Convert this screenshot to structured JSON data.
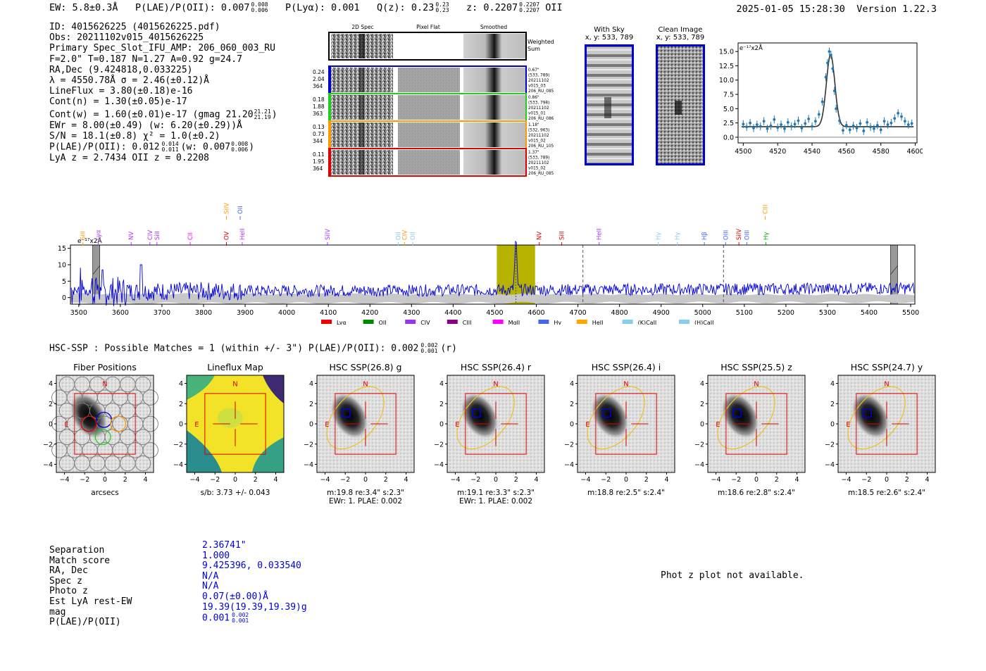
{
  "header": {
    "ew": "EW: 5.8±0.3Å",
    "plae_label": "P(LAE)/P(OII): 0.007",
    "plae_sup": "0.008",
    "plae_sub": "0.006",
    "plya": "P(Lyα): 0.001",
    "qz_label": "Q(z): 0.23",
    "qz_sup": "0.23",
    "qz_sub": "0.23",
    "z_label": "z: 0.2207",
    "z_sup": "0.2207",
    "z_sub": "0.2207",
    "z_line": "OII",
    "datetime": "2025-01-05 15:28:30",
    "version": "Version 1.22.3"
  },
  "info": {
    "id": "ID: 4015626225 (4015626225.pdf)",
    "obs": "Obs: 20211102v015_4015626225",
    "primary": "Primary Spec_Slot_IFU_AMP: 206_060_003_RU",
    "fiber": "F=2.0\"  T=0.187  N=1.27  A=0.92  g=24.7",
    "radec": "RA,Dec (9.424818,0.033225)",
    "lambda": "λ = 4550.78Å  σ = 2.46(±0.12)Å",
    "lineflux": "LineFlux = 3.80(±0.18)e-16",
    "contn": "Cont(n) = 1.30(±0.05)e-17",
    "contw": "Cont(w) = 1.60(±0.01)e-17 (gmag 21.20",
    "contw_sup": "21.21",
    "contw_sub": "21.19",
    "contw_close": ")",
    "ewr": "EWr = 8.00(±0.49) (w: 6.20(±0.29))Å",
    "sn": "S/N = 18.1(±0.8)  χ² = 1.0(±0.2)",
    "plae": "P(LAE)/P(OII): 0.012",
    "plae_sup": "0.014",
    "plae_sub": "0.011",
    "plae_w": "(w: 0.007",
    "plae_w_sup": "0.008",
    "plae_w_sub": "0.006",
    "plae_w_close": ")",
    "lyaz": "LyA z = 2.7434  OII z = 0.2208"
  },
  "stamps": {
    "col_labels": [
      "2D Spec",
      "Pixel Flat",
      "Smoothed"
    ],
    "weighted_sum": [
      "Weighted",
      "Sum"
    ],
    "rows": [
      {
        "left": [
          "0.24",
          "2.04",
          "364"
        ],
        "right": [
          "0.67\"",
          "(533, 789)",
          "20211102",
          "v015_03",
          "206_RU_085"
        ],
        "color": "#0000cc"
      },
      {
        "left": [
          "0.18",
          "1.88",
          "363"
        ],
        "right": [
          "0.86\"",
          "(533, 798)",
          "20211102",
          "v015_01",
          "206_RU_086"
        ],
        "color": "#22cc22"
      },
      {
        "left": [
          "0.13",
          "0.73",
          "344"
        ],
        "right": [
          "1.18\"",
          "(532, 963)",
          "20211102",
          "v015_02",
          "206_RU_105"
        ],
        "color": "#ff9900"
      },
      {
        "left": [
          "0.11",
          "1.95",
          "364"
        ],
        "right": [
          "1.37\"",
          "(533, 789)",
          "20211102",
          "v015_02",
          "206_RU_085"
        ],
        "color": "#dd0000"
      }
    ]
  },
  "sky": {
    "with_sky": "With Sky",
    "with_sky_xy": "x, y: 533, 789",
    "clean": "Clean Image",
    "clean_xy": "x, y: 533, 789"
  },
  "fit_chart": {
    "type": "scatter",
    "unit_label": "e⁻¹⁷x2Å",
    "xlim": [
      4497,
      4601
    ],
    "ylim": [
      -1,
      16.5
    ],
    "xticks": [
      4500,
      4520,
      4540,
      4560,
      4580,
      4600
    ],
    "yticks": [
      0.0,
      2.5,
      5.0,
      7.5,
      10.0,
      12.5,
      15.0
    ],
    "points_x": [
      4500,
      4502,
      4504,
      4506,
      4508,
      4510,
      4512,
      4514,
      4516,
      4518,
      4520,
      4522,
      4524,
      4526,
      4528,
      4530,
      4532,
      4534,
      4536,
      4538,
      4540,
      4542,
      4544,
      4546,
      4548,
      4549,
      4550,
      4551,
      4552,
      4553,
      4554,
      4556,
      4558,
      4560,
      4562,
      4564,
      4566,
      4568,
      4570,
      4572,
      4574,
      4576,
      4578,
      4580,
      4582,
      4584,
      4586,
      4588,
      4590,
      4592,
      4594,
      4596,
      4598
    ],
    "points_y": [
      2.3,
      1.8,
      2.5,
      1.6,
      2.2,
      1.9,
      2.8,
      1.5,
      2.0,
      3.1,
      1.7,
      2.2,
      1.5,
      2.6,
      1.9,
      2.3,
      2.9,
      1.6,
      2.4,
      3.2,
      1.9,
      2.8,
      4.0,
      6.2,
      10.5,
      13.0,
      15.0,
      14.4,
      12.0,
      8.1,
      5.0,
      2.9,
      1.2,
      2.1,
      1.3,
      2.0,
      1.6,
      2.4,
      1.1,
      2.6,
      1.8,
      1.5,
      2.1,
      1.3,
      2.8,
      2.2,
      2.5,
      3.3,
      4.2,
      3.6,
      2.8,
      2.2,
      2.4
    ],
    "error": 0.7,
    "model": {
      "continuum": 1.85,
      "center": 4550.78,
      "sigma": 2.46,
      "amplitude": 12.6
    }
  },
  "spectrum_chart": {
    "type": "line",
    "unit_label": "e⁻¹⁷x2Å",
    "xlim": [
      3480,
      5510
    ],
    "ylim": [
      -2,
      16
    ],
    "xticks": [
      3500,
      3600,
      3700,
      3800,
      3900,
      4000,
      4100,
      4200,
      4300,
      4400,
      4500,
      4600,
      4700,
      4800,
      4900,
      5000,
      5100,
      5200,
      5300,
      5400,
      5500
    ],
    "yticks": [
      0,
      5,
      10,
      15
    ],
    "highlight_band": [
      4505,
      4597
    ],
    "peak_center": 4550.78,
    "peak_height": 14.5,
    "grey_bands": [
      3542,
      5460
    ],
    "dashed_lines": [
      4712,
      5050
    ],
    "line_labels": [
      {
        "text": "SiII",
        "x": 3510,
        "color": "#ff9900",
        "row": 1
      },
      {
        "text": "Lyα",
        "x": 3547,
        "color": "#aa33ff",
        "row": 1
      },
      {
        "text": "NV",
        "x": 3626,
        "color": "#aa33ff",
        "row": 1
      },
      {
        "text": "CIV",
        "x": 3671,
        "color": "#aa33ff",
        "row": 1
      },
      {
        "text": "SiII",
        "x": 3688,
        "color": "#aa33ff",
        "row": 1
      },
      {
        "text": "CII",
        "x": 3768,
        "color": "#ff00ff",
        "row": 1
      },
      {
        "text": "SiIV",
        "x": 3855,
        "color": "#ff9900",
        "row": 0
      },
      {
        "text": "OII",
        "x": 3888,
        "color": "#4466ff",
        "row": 0
      },
      {
        "text": "OV",
        "x": 3855,
        "color": "#dd0000",
        "row": 1
      },
      {
        "text": "HeII",
        "x": 3893,
        "color": "#aa33ff",
        "row": 1
      },
      {
        "text": "SiIV",
        "x": 4098,
        "color": "#aa33ff",
        "row": 1
      },
      {
        "text": "OII",
        "x": 4268,
        "color": "#88ccee",
        "row": 1
      },
      {
        "text": "CIV",
        "x": 4283,
        "color": "#ff9900",
        "row": 1
      },
      {
        "text": "OII",
        "x": 4303,
        "color": "#88ccee",
        "row": 1
      },
      {
        "text": "NV",
        "x": 4607,
        "color": "#dd0000",
        "row": 1
      },
      {
        "text": "SiII",
        "x": 4661,
        "color": "#dd0000",
        "row": 1
      },
      {
        "text": "HeII",
        "x": 4751,
        "color": "#aa33ff",
        "row": 1
      },
      {
        "text": "Hγ",
        "x": 4893,
        "color": "#88ccee",
        "row": 1
      },
      {
        "text": "Hγ",
        "x": 4939,
        "color": "#88ccee",
        "row": 1
      },
      {
        "text": "Hβ",
        "x": 5004,
        "color": "#4466ff",
        "row": 1
      },
      {
        "text": "OIII",
        "x": 5055,
        "color": "#4466ff",
        "row": 1
      },
      {
        "text": "SiIV",
        "x": 5087,
        "color": "#dd0000",
        "row": 1
      },
      {
        "text": "OIII",
        "x": 5106,
        "color": "#4466ff",
        "row": 1
      },
      {
        "text": "CIII",
        "x": 5150,
        "color": "#ff9900",
        "row": 0
      },
      {
        "text": "Hγ",
        "x": 5152,
        "color": "#00aa00",
        "row": 1
      }
    ],
    "legend": [
      {
        "name": "Lyα",
        "color": "#ee0000"
      },
      {
        "name": "OII",
        "color": "#008800"
      },
      {
        "name": "CIV",
        "color": "#9933ee"
      },
      {
        "name": "CIII",
        "color": "#880088"
      },
      {
        "name": "MgII",
        "color": "#ff00ff"
      },
      {
        "name": "Hγ",
        "color": "#4466ee"
      },
      {
        "name": "HeII",
        "color": "#ffa500"
      },
      {
        "name": "(K)CaII",
        "color": "#88ccee"
      },
      {
        "name": "(H)CaII",
        "color": "#88ccee"
      }
    ]
  },
  "hsc": {
    "summary": "HSC-SSP : Possible Matches = 1 (within +/- 3\")  P(LAE)/P(OII): 0.002",
    "summary_sup": "0.002",
    "summary_sub": "0.001",
    "summary_close": "(r)",
    "compass_n": "N",
    "compass_e": "E",
    "axis_ticks": [
      "−4",
      "−2",
      "0",
      "2",
      "4"
    ],
    "panels": [
      {
        "title": "Fiber Positions",
        "caption": [
          "arcsecs"
        ],
        "kind": "fiber"
      },
      {
        "title": "Lineflux Map",
        "caption": [
          "s/b: 3.73 +/- 0.043"
        ],
        "kind": "lineflux"
      },
      {
        "title": "HSC SSP(26.8) g",
        "caption": [
          "m:19.8   re:3.4\"   s:2.3\"",
          "EWr: 1. PLAE: 0.002"
        ],
        "kind": "hsc"
      },
      {
        "title": "HSC SSP(26.4) r",
        "caption": [
          "m:19.1   re:3.3\"   s:2.3\"",
          "EWr: 1. PLAE: 0.002"
        ],
        "kind": "hsc"
      },
      {
        "title": "HSC SSP(26.4) i",
        "caption": [
          "m:18.8   re:2.5\"   s:2.4\""
        ],
        "kind": "hsc"
      },
      {
        "title": "HSC SSP(25.5) z",
        "caption": [
          "m:18.6   re:2.8\"   s:2.4\""
        ],
        "kind": "hsc"
      },
      {
        "title": "HSC SSP(24.7) y",
        "caption": [
          "m:18.5   re:2.6\"   s:2.4\""
        ],
        "kind": "hsc"
      }
    ]
  },
  "match": {
    "labels": [
      "Separation",
      "Match score",
      "RA, Dec",
      "Spec z",
      "Photo z",
      "Est LyA rest-EW",
      "mag",
      "P(LAE)/P(OII)"
    ],
    "values": [
      "2.36741\"",
      "1.000",
      "9.425396, 0.033540",
      "N/A",
      "N/A",
      "0.07(±0.00)Å",
      "19.39(19.39,19.39)g",
      "0.001"
    ],
    "last_sup": "0.002",
    "last_sub": "0.001",
    "phot_z_note": "Phot z plot not available."
  }
}
